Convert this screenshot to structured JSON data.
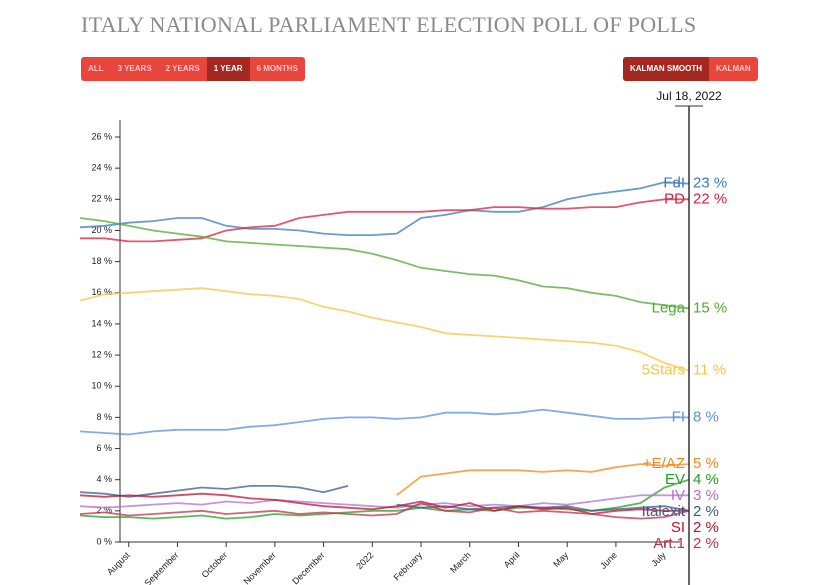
{
  "chart_data": {
    "type": "line",
    "title": "ITALY NATIONAL PARLIAMENT ELECTION POLL OF POLLS",
    "range_buttons": [
      {
        "label": "ALL",
        "active": false
      },
      {
        "label": "3 YEARS",
        "active": false
      },
      {
        "label": "2 YEARS",
        "active": false
      },
      {
        "label": "1 YEAR",
        "active": true
      },
      {
        "label": "6 MONTHS",
        "active": false
      }
    ],
    "smoothing_buttons": [
      {
        "label": "KALMAN SMOOTH",
        "active": true
      },
      {
        "label": "KALMAN",
        "active": false
      }
    ],
    "hover_date": "Jul 18, 2022",
    "categories": [
      null,
      null,
      "August",
      null,
      "September",
      null,
      "October",
      null,
      "November",
      null,
      "December",
      null,
      "2022",
      null,
      "February",
      null,
      "March",
      null,
      "April",
      null,
      "May",
      null,
      "June",
      null,
      "July",
      null
    ],
    "ylim": [
      0,
      26
    ],
    "yticks": [
      {
        "value": 0,
        "label": "0 %"
      },
      {
        "value": 2,
        "label": "2 %"
      },
      {
        "value": 4,
        "label": "4 %"
      },
      {
        "value": 6,
        "label": "6 %"
      },
      {
        "value": 8,
        "label": "8 %"
      },
      {
        "value": 10,
        "label": "10 %"
      },
      {
        "value": 12,
        "label": "12 %"
      },
      {
        "value": 14,
        "label": "14 %"
      },
      {
        "value": 16,
        "label": "16 %"
      },
      {
        "value": 18,
        "label": "18 %"
      },
      {
        "value": 20,
        "label": "20 %"
      },
      {
        "value": 22,
        "label": "22 %"
      },
      {
        "value": 24,
        "label": "24 %"
      },
      {
        "value": 26,
        "label": "26 %"
      }
    ],
    "series": [
      {
        "name": "FdI",
        "color": "#3a78c2",
        "values": [
          20.2,
          20.3,
          20.5,
          20.6,
          20.8,
          20.8,
          20.3,
          20.1,
          20.1,
          20.0,
          19.8,
          19.7,
          19.7,
          19.8,
          20.8,
          21.0,
          21.3,
          21.2,
          21.2,
          21.5,
          22.0,
          22.3,
          22.5,
          22.7,
          23.1,
          23
        ],
        "value_labels": [
          null,
          null,
          null,
          null,
          null,
          null,
          null,
          null,
          null,
          null,
          null,
          null,
          null,
          null,
          null,
          null,
          null,
          null,
          null,
          null,
          null,
          null,
          null,
          null,
          null,
          "23 %"
        ]
      },
      {
        "name": "PD",
        "color": "#d8203f",
        "values": [
          19.5,
          19.5,
          19.3,
          19.3,
          19.4,
          19.5,
          20.0,
          20.2,
          20.3,
          20.8,
          21.0,
          21.2,
          21.2,
          21.2,
          21.2,
          21.3,
          21.3,
          21.5,
          21.5,
          21.4,
          21.4,
          21.5,
          21.5,
          21.8,
          22.0,
          22
        ],
        "value_labels": [
          null,
          null,
          null,
          null,
          null,
          null,
          null,
          null,
          null,
          null,
          null,
          null,
          null,
          null,
          null,
          null,
          null,
          null,
          null,
          null,
          null,
          null,
          null,
          null,
          null,
          "22 %"
        ]
      },
      {
        "name": "Lega",
        "color": "#52a832",
        "values": [
          20.8,
          20.6,
          20.3,
          20.0,
          19.8,
          19.6,
          19.3,
          19.2,
          19.1,
          19.0,
          18.9,
          18.8,
          18.5,
          18.1,
          17.6,
          17.4,
          17.2,
          17.1,
          16.8,
          16.4,
          16.3,
          16.0,
          15.8,
          15.4,
          15.2,
          15
        ],
        "value_labels": [
          null,
          null,
          null,
          null,
          null,
          null,
          null,
          null,
          null,
          null,
          null,
          null,
          null,
          null,
          null,
          null,
          null,
          null,
          null,
          null,
          null,
          null,
          null,
          null,
          null,
          "15 %"
        ]
      },
      {
        "name": "5Stars",
        "color": "#f5c542",
        "values": [
          15.5,
          15.9,
          16.0,
          16.1,
          16.2,
          16.3,
          16.1,
          15.9,
          15.8,
          15.6,
          15.1,
          14.8,
          14.4,
          14.1,
          13.8,
          13.4,
          13.3,
          13.2,
          13.1,
          13.0,
          12.9,
          12.8,
          12.6,
          12.2,
          11.5,
          11
        ],
        "value_labels": [
          null,
          null,
          null,
          null,
          null,
          null,
          null,
          null,
          null,
          null,
          null,
          null,
          null,
          null,
          null,
          null,
          null,
          null,
          null,
          null,
          null,
          null,
          null,
          null,
          null,
          "11 %"
        ]
      },
      {
        "name": "FI",
        "color": "#5b8fe0",
        "values": [
          7.1,
          7.0,
          6.9,
          7.1,
          7.2,
          7.2,
          7.2,
          7.4,
          7.5,
          7.7,
          7.9,
          8.0,
          8.0,
          7.9,
          8.0,
          8.3,
          8.3,
          8.2,
          8.3,
          8.5,
          8.3,
          8.1,
          7.9,
          7.9,
          8.0,
          8
        ],
        "value_labels": [
          null,
          null,
          null,
          null,
          null,
          null,
          null,
          null,
          null,
          null,
          null,
          null,
          null,
          null,
          null,
          null,
          null,
          null,
          null,
          null,
          null,
          null,
          null,
          null,
          null,
          "8 %"
        ]
      },
      {
        "name": "+E/AZ",
        "color": "#f08a1c",
        "values": [
          null,
          null,
          null,
          null,
          null,
          null,
          null,
          null,
          null,
          null,
          null,
          null,
          null,
          3.0,
          4.2,
          4.4,
          4.6,
          4.6,
          4.6,
          4.5,
          4.6,
          4.5,
          4.8,
          5.0,
          4.9,
          5
        ],
        "value_labels": [
          null,
          null,
          null,
          null,
          null,
          null,
          null,
          null,
          null,
          null,
          null,
          null,
          null,
          null,
          null,
          null,
          null,
          null,
          null,
          null,
          null,
          null,
          null,
          null,
          null,
          "5 %"
        ]
      },
      {
        "name": "EV",
        "color": "#20a020",
        "values": [
          1.7,
          1.6,
          1.6,
          1.5,
          1.6,
          1.7,
          1.5,
          1.6,
          1.8,
          1.7,
          1.8,
          1.9,
          2.0,
          2.0,
          2.2,
          2.0,
          2.1,
          2.0,
          2.2,
          2.2,
          2.1,
          2.0,
          2.2,
          2.5,
          3.5,
          4
        ],
        "value_labels": [
          null,
          null,
          null,
          null,
          null,
          null,
          null,
          null,
          null,
          null,
          null,
          null,
          null,
          null,
          null,
          null,
          null,
          null,
          null,
          null,
          null,
          null,
          null,
          null,
          null,
          "4 %"
        ]
      },
      {
        "name": "IV",
        "color": "#b070d0",
        "values": [
          2.3,
          2.2,
          2.3,
          2.4,
          2.5,
          2.4,
          2.6,
          2.5,
          2.7,
          2.6,
          2.5,
          2.4,
          2.3,
          2.2,
          2.4,
          2.5,
          2.3,
          2.4,
          2.3,
          2.5,
          2.4,
          2.6,
          2.8,
          3.0,
          3.0,
          3
        ],
        "value_labels": [
          null,
          null,
          null,
          null,
          null,
          null,
          null,
          null,
          null,
          null,
          null,
          null,
          null,
          null,
          null,
          null,
          null,
          null,
          null,
          null,
          null,
          null,
          null,
          null,
          null,
          "3 %"
        ]
      },
      {
        "name": "Italexit",
        "color": "#3a5a8a",
        "values": [
          3.2,
          3.1,
          2.9,
          3.1,
          3.3,
          3.5,
          3.4,
          3.6,
          3.6,
          3.5,
          3.2,
          3.6,
          null,
          2.4,
          2.2,
          2.3,
          2.1,
          2.2,
          2.3,
          2.2,
          2.3,
          2.0,
          2.1,
          2.2,
          2.3,
          2
        ],
        "value_labels": [
          null,
          null,
          null,
          null,
          null,
          null,
          null,
          null,
          null,
          null,
          null,
          null,
          null,
          null,
          null,
          null,
          null,
          null,
          null,
          null,
          null,
          null,
          null,
          null,
          null,
          "2 %"
        ]
      },
      {
        "name": "SI",
        "color": "#c0102a",
        "values": [
          3.0,
          2.9,
          3.0,
          2.9,
          3.0,
          3.1,
          3.0,
          2.8,
          2.7,
          2.5,
          2.3,
          2.2,
          2.1,
          2.3,
          2.6,
          2.2,
          2.5,
          2.0,
          2.3,
          2.1,
          2.2,
          1.8,
          2.0,
          2.1,
          2.0,
          2
        ],
        "value_labels": [
          null,
          null,
          null,
          null,
          null,
          null,
          null,
          null,
          null,
          null,
          null,
          null,
          null,
          null,
          null,
          null,
          null,
          null,
          null,
          null,
          null,
          null,
          null,
          null,
          null,
          "2 %"
        ]
      },
      {
        "name": "Art.1",
        "color": "#c0304a",
        "values": [
          1.8,
          1.9,
          1.7,
          1.8,
          1.9,
          2.0,
          1.8,
          1.9,
          2.0,
          1.8,
          1.9,
          1.8,
          1.7,
          1.8,
          2.5,
          2.0,
          1.9,
          2.2,
          1.9,
          2.0,
          1.9,
          1.8,
          1.6,
          1.5,
          1.6,
          2
        ],
        "value_labels": [
          null,
          null,
          null,
          null,
          null,
          null,
          null,
          null,
          null,
          null,
          null,
          null,
          null,
          null,
          null,
          null,
          null,
          null,
          null,
          null,
          null,
          null,
          null,
          null,
          null,
          "2 %"
        ]
      }
    ]
  }
}
